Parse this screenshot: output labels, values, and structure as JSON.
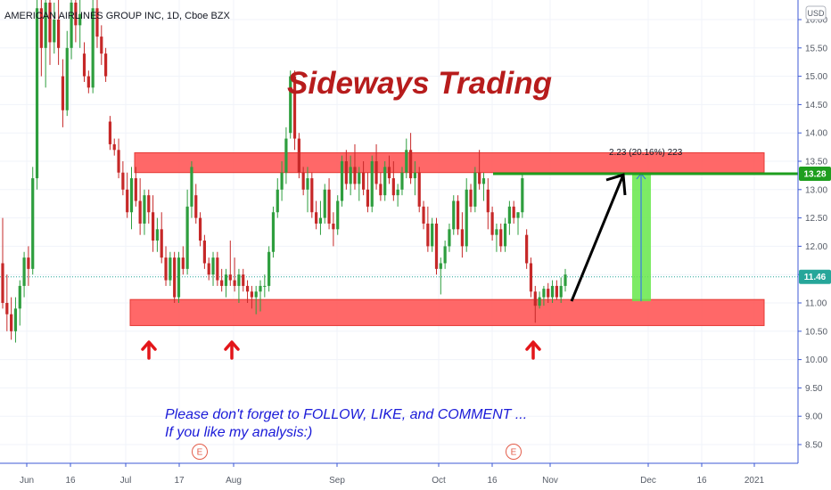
{
  "chart_data": {
    "type": "candlestick",
    "title": "AMERICAN AIRLINES GROUP INC, 1D, Cboe BZX",
    "currency": "USD",
    "ylim": [
      8.1,
      16.5
    ],
    "yticks": [
      "8.50",
      "9.00",
      "9.50",
      "10.00",
      "10.50",
      "11.00",
      "11.50",
      "12.00",
      "12.50",
      "13.00",
      "13.50",
      "14.00",
      "14.50",
      "15.00",
      "15.50",
      "16.00"
    ],
    "xticks": [
      "Jun",
      "16",
      "Jul",
      "17",
      "Aug",
      "Sep",
      "Oct",
      "16",
      "Nov",
      "Dec",
      "16",
      "2021"
    ],
    "last_price": 11.46,
    "last_price_label": "11.46",
    "target_price": 13.28,
    "target_price_label": "13.28",
    "annotations": {
      "headline": "Sideways Trading",
      "note_line1": "Please don't forget to FOLLOW, LIKE, and COMMENT ...",
      "note_line2": "If you like my analysis:)",
      "measure_label": "2.23 (20.16%) 223",
      "earnings_marker": "E"
    },
    "zones": [
      {
        "name": "resistance",
        "low": 13.3,
        "high": 13.65
      },
      {
        "name": "support",
        "low": 10.6,
        "high": 11.06
      }
    ],
    "candles": [
      {
        "o": 11.7,
        "h": 12.5,
        "l": 10.9,
        "c": 11.0
      },
      {
        "o": 11.0,
        "h": 11.5,
        "l": 10.5,
        "c": 10.8
      },
      {
        "o": 10.8,
        "h": 11.1,
        "l": 10.35,
        "c": 10.5
      },
      {
        "o": 10.5,
        "h": 11.1,
        "l": 10.3,
        "c": 10.9
      },
      {
        "o": 10.9,
        "h": 11.4,
        "l": 10.6,
        "c": 11.3
      },
      {
        "o": 11.3,
        "h": 11.9,
        "l": 11.1,
        "c": 11.8
      },
      {
        "o": 11.8,
        "h": 12.0,
        "l": 11.3,
        "c": 11.6
      },
      {
        "o": 11.6,
        "h": 13.4,
        "l": 11.5,
        "c": 13.2
      },
      {
        "o": 13.2,
        "h": 16.5,
        "l": 13.0,
        "c": 16.2
      },
      {
        "o": 16.2,
        "h": 16.5,
        "l": 15.0,
        "c": 15.5
      },
      {
        "o": 15.5,
        "h": 16.5,
        "l": 14.8,
        "c": 16.3
      },
      {
        "o": 16.3,
        "h": 16.5,
        "l": 15.2,
        "c": 15.6
      },
      {
        "o": 15.6,
        "h": 16.3,
        "l": 15.4,
        "c": 16.0
      },
      {
        "o": 16.0,
        "h": 16.5,
        "l": 15.2,
        "c": 15.5
      },
      {
        "o": 15.0,
        "h": 15.3,
        "l": 14.1,
        "c": 14.4
      },
      {
        "o": 14.4,
        "h": 15.8,
        "l": 14.3,
        "c": 15.5
      },
      {
        "o": 15.5,
        "h": 16.5,
        "l": 15.3,
        "c": 16.3
      },
      {
        "o": 16.3,
        "h": 16.5,
        "l": 15.6,
        "c": 15.9
      },
      {
        "o": 15.9,
        "h": 16.4,
        "l": 15.5,
        "c": 16.1
      },
      {
        "o": 15.4,
        "h": 15.6,
        "l": 14.9,
        "c": 15.0
      },
      {
        "o": 15.0,
        "h": 15.1,
        "l": 14.7,
        "c": 14.8
      },
      {
        "o": 14.8,
        "h": 16.4,
        "l": 14.7,
        "c": 16.2
      },
      {
        "o": 16.2,
        "h": 16.5,
        "l": 15.5,
        "c": 15.7
      },
      {
        "o": 15.7,
        "h": 15.9,
        "l": 15.2,
        "c": 15.4
      },
      {
        "o": 15.4,
        "h": 15.5,
        "l": 14.9,
        "c": 15.0
      },
      {
        "o": 14.2,
        "h": 14.3,
        "l": 13.7,
        "c": 13.8
      },
      {
        "o": 13.8,
        "h": 13.9,
        "l": 13.6,
        "c": 13.7
      },
      {
        "o": 13.7,
        "h": 13.9,
        "l": 13.2,
        "c": 13.3
      },
      {
        "o": 13.3,
        "h": 13.5,
        "l": 12.9,
        "c": 13.0
      },
      {
        "o": 13.0,
        "h": 13.3,
        "l": 12.5,
        "c": 12.6
      },
      {
        "o": 12.6,
        "h": 13.4,
        "l": 12.3,
        "c": 13.2
      },
      {
        "o": 13.2,
        "h": 13.4,
        "l": 12.7,
        "c": 12.8
      },
      {
        "o": 12.8,
        "h": 13.2,
        "l": 12.2,
        "c": 12.4
      },
      {
        "o": 12.4,
        "h": 13.0,
        "l": 12.2,
        "c": 12.9
      },
      {
        "o": 12.9,
        "h": 13.0,
        "l": 12.4,
        "c": 12.6
      },
      {
        "o": 12.6,
        "h": 12.9,
        "l": 11.9,
        "c": 12.1
      },
      {
        "o": 12.1,
        "h": 12.5,
        "l": 11.9,
        "c": 12.3
      },
      {
        "o": 12.3,
        "h": 12.6,
        "l": 11.7,
        "c": 11.8
      },
      {
        "o": 11.8,
        "h": 12.0,
        "l": 11.3,
        "c": 11.4
      },
      {
        "o": 11.4,
        "h": 11.9,
        "l": 11.3,
        "c": 11.8
      },
      {
        "o": 11.8,
        "h": 11.9,
        "l": 11.0,
        "c": 11.1
      },
      {
        "o": 11.1,
        "h": 11.9,
        "l": 11.0,
        "c": 11.8
      },
      {
        "o": 11.8,
        "h": 12.0,
        "l": 11.5,
        "c": 11.6
      },
      {
        "o": 11.6,
        "h": 13.0,
        "l": 11.5,
        "c": 12.7
      },
      {
        "o": 12.7,
        "h": 13.5,
        "l": 12.5,
        "c": 13.4
      },
      {
        "o": 12.9,
        "h": 13.1,
        "l": 12.4,
        "c": 12.5
      },
      {
        "o": 12.5,
        "h": 12.6,
        "l": 12.0,
        "c": 12.1
      },
      {
        "o": 12.1,
        "h": 12.2,
        "l": 11.6,
        "c": 11.7
      },
      {
        "o": 11.7,
        "h": 11.8,
        "l": 11.4,
        "c": 11.5
      },
      {
        "o": 11.5,
        "h": 11.9,
        "l": 11.3,
        "c": 11.8
      },
      {
        "o": 11.8,
        "h": 11.9,
        "l": 11.3,
        "c": 11.4
      },
      {
        "o": 11.4,
        "h": 11.6,
        "l": 11.2,
        "c": 11.3
      },
      {
        "o": 11.3,
        "h": 11.6,
        "l": 11.1,
        "c": 11.5
      },
      {
        "o": 11.5,
        "h": 12.1,
        "l": 11.3,
        "c": 11.4
      },
      {
        "o": 11.4,
        "h": 11.8,
        "l": 11.2,
        "c": 11.3
      },
      {
        "o": 11.3,
        "h": 11.6,
        "l": 11.0,
        "c": 11.5
      },
      {
        "o": 11.5,
        "h": 11.6,
        "l": 11.2,
        "c": 11.3
      },
      {
        "o": 11.3,
        "h": 11.4,
        "l": 11.0,
        "c": 11.2
      },
      {
        "o": 11.2,
        "h": 11.3,
        "l": 10.9,
        "c": 11.1
      },
      {
        "o": 11.1,
        "h": 11.3,
        "l": 10.8,
        "c": 11.2
      },
      {
        "o": 11.2,
        "h": 11.4,
        "l": 10.85,
        "c": 11.3
      },
      {
        "o": 11.3,
        "h": 11.5,
        "l": 11.1,
        "c": 11.3
      },
      {
        "o": 11.3,
        "h": 12.0,
        "l": 11.2,
        "c": 11.9
      },
      {
        "o": 11.9,
        "h": 12.7,
        "l": 11.8,
        "c": 12.6
      },
      {
        "o": 12.6,
        "h": 13.2,
        "l": 12.5,
        "c": 13.0
      },
      {
        "o": 13.0,
        "h": 13.5,
        "l": 12.8,
        "c": 13.3
      },
      {
        "o": 13.3,
        "h": 14.1,
        "l": 13.1,
        "c": 13.9
      },
      {
        "o": 14.0,
        "h": 15.1,
        "l": 13.9,
        "c": 15.0
      },
      {
        "o": 15.0,
        "h": 15.1,
        "l": 13.7,
        "c": 13.9
      },
      {
        "o": 13.9,
        "h": 14.0,
        "l": 13.2,
        "c": 13.3
      },
      {
        "o": 13.3,
        "h": 13.4,
        "l": 12.9,
        "c": 13.0
      },
      {
        "o": 13.0,
        "h": 13.4,
        "l": 12.6,
        "c": 13.2
      },
      {
        "o": 13.2,
        "h": 13.3,
        "l": 12.5,
        "c": 12.6
      },
      {
        "o": 12.6,
        "h": 12.8,
        "l": 12.3,
        "c": 12.4
      },
      {
        "o": 12.4,
        "h": 12.8,
        "l": 12.2,
        "c": 12.5
      },
      {
        "o": 12.5,
        "h": 13.1,
        "l": 12.4,
        "c": 13.0
      },
      {
        "o": 13.0,
        "h": 13.2,
        "l": 12.3,
        "c": 12.4
      },
      {
        "o": 12.4,
        "h": 12.6,
        "l": 12.0,
        "c": 12.3
      },
      {
        "o": 12.3,
        "h": 12.9,
        "l": 12.2,
        "c": 12.8
      },
      {
        "o": 12.8,
        "h": 13.6,
        "l": 12.7,
        "c": 13.5
      },
      {
        "o": 13.5,
        "h": 13.7,
        "l": 13.0,
        "c": 13.1
      },
      {
        "o": 13.1,
        "h": 13.6,
        "l": 12.9,
        "c": 13.4
      },
      {
        "o": 13.4,
        "h": 13.8,
        "l": 13.0,
        "c": 13.1
      },
      {
        "o": 13.1,
        "h": 13.4,
        "l": 12.8,
        "c": 13.3
      },
      {
        "o": 13.3,
        "h": 13.5,
        "l": 12.9,
        "c": 13.0
      },
      {
        "o": 13.0,
        "h": 13.3,
        "l": 12.6,
        "c": 12.7
      },
      {
        "o": 12.7,
        "h": 13.6,
        "l": 12.6,
        "c": 13.5
      },
      {
        "o": 13.5,
        "h": 13.8,
        "l": 13.0,
        "c": 13.1
      },
      {
        "o": 13.1,
        "h": 13.3,
        "l": 12.8,
        "c": 12.9
      },
      {
        "o": 12.9,
        "h": 13.5,
        "l": 12.8,
        "c": 13.4
      },
      {
        "o": 13.4,
        "h": 13.6,
        "l": 13.1,
        "c": 13.2
      },
      {
        "o": 13.2,
        "h": 13.5,
        "l": 12.8,
        "c": 12.9
      },
      {
        "o": 12.9,
        "h": 13.1,
        "l": 12.7,
        "c": 13.0
      },
      {
        "o": 13.0,
        "h": 13.4,
        "l": 12.9,
        "c": 13.3
      },
      {
        "o": 13.3,
        "h": 13.9,
        "l": 13.2,
        "c": 13.7
      },
      {
        "o": 13.7,
        "h": 14.0,
        "l": 13.1,
        "c": 13.2
      },
      {
        "o": 13.2,
        "h": 13.5,
        "l": 12.9,
        "c": 13.3
      },
      {
        "o": 13.3,
        "h": 13.4,
        "l": 12.6,
        "c": 12.7
      },
      {
        "o": 12.7,
        "h": 12.8,
        "l": 12.3,
        "c": 12.4
      },
      {
        "o": 12.4,
        "h": 12.7,
        "l": 11.9,
        "c": 12.0
      },
      {
        "o": 12.0,
        "h": 12.5,
        "l": 11.9,
        "c": 12.4
      },
      {
        "o": 12.4,
        "h": 12.5,
        "l": 11.5,
        "c": 11.6
      },
      {
        "o": 11.6,
        "h": 11.8,
        "l": 11.15,
        "c": 11.7
      },
      {
        "o": 11.7,
        "h": 12.1,
        "l": 11.6,
        "c": 12.0
      },
      {
        "o": 12.0,
        "h": 12.4,
        "l": 11.9,
        "c": 12.3
      },
      {
        "o": 12.3,
        "h": 12.9,
        "l": 12.2,
        "c": 12.8
      },
      {
        "o": 12.8,
        "h": 12.9,
        "l": 12.2,
        "c": 12.3
      },
      {
        "o": 12.3,
        "h": 12.6,
        "l": 11.8,
        "c": 12.0
      },
      {
        "o": 12.0,
        "h": 13.2,
        "l": 11.9,
        "c": 13.0
      },
      {
        "o": 13.0,
        "h": 13.1,
        "l": 12.6,
        "c": 12.7
      },
      {
        "o": 12.7,
        "h": 13.4,
        "l": 12.6,
        "c": 13.3
      },
      {
        "o": 13.3,
        "h": 13.7,
        "l": 13.0,
        "c": 13.1
      },
      {
        "o": 13.1,
        "h": 13.3,
        "l": 12.8,
        "c": 13.2
      },
      {
        "o": 13.0,
        "h": 13.2,
        "l": 12.3,
        "c": 12.6
      },
      {
        "o": 12.6,
        "h": 12.7,
        "l": 12.1,
        "c": 12.2
      },
      {
        "o": 12.2,
        "h": 12.4,
        "l": 11.9,
        "c": 12.3
      },
      {
        "o": 12.3,
        "h": 12.4,
        "l": 11.9,
        "c": 12.0
      },
      {
        "o": 12.0,
        "h": 12.5,
        "l": 11.9,
        "c": 12.4
      },
      {
        "o": 12.4,
        "h": 12.8,
        "l": 12.2,
        "c": 12.7
      },
      {
        "o": 12.7,
        "h": 12.8,
        "l": 12.4,
        "c": 12.5
      },
      {
        "o": 12.5,
        "h": 12.6,
        "l": 12.2,
        "c": 12.6
      },
      {
        "o": 12.6,
        "h": 13.3,
        "l": 12.5,
        "c": 13.2
      },
      {
        "o": 12.2,
        "h": 12.3,
        "l": 11.6,
        "c": 11.7
      },
      {
        "o": 11.7,
        "h": 11.8,
        "l": 11.1,
        "c": 11.2
      },
      {
        "o": 11.2,
        "h": 11.3,
        "l": 10.65,
        "c": 10.95
      },
      {
        "o": 10.95,
        "h": 11.2,
        "l": 10.9,
        "c": 11.1
      },
      {
        "o": 11.1,
        "h": 11.3,
        "l": 10.95,
        "c": 11.25
      },
      {
        "o": 11.25,
        "h": 11.35,
        "l": 11.0,
        "c": 11.1
      },
      {
        "o": 11.1,
        "h": 11.4,
        "l": 11.0,
        "c": 11.3
      },
      {
        "o": 11.3,
        "h": 11.4,
        "l": 11.05,
        "c": 11.1
      },
      {
        "o": 11.1,
        "h": 11.45,
        "l": 11.0,
        "c": 11.3
      },
      {
        "o": 11.3,
        "h": 11.6,
        "l": 11.2,
        "c": 11.5
      }
    ]
  }
}
